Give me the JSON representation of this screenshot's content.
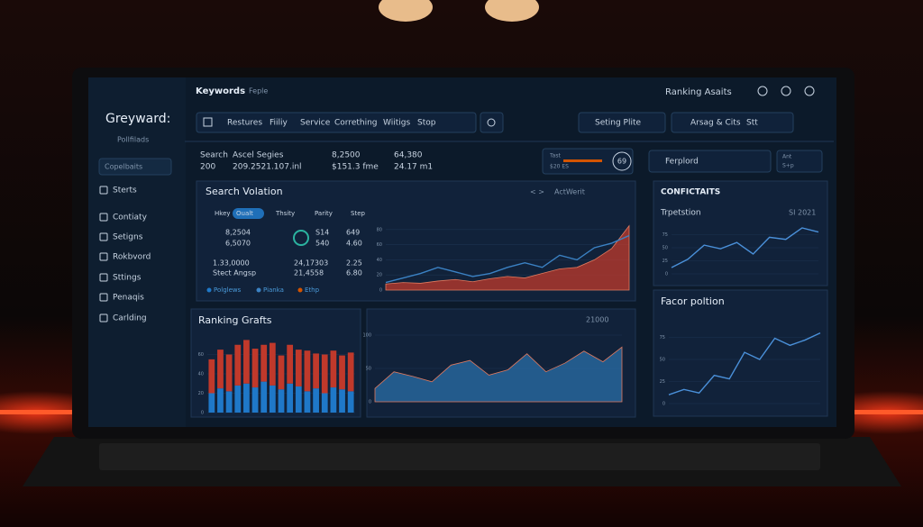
{
  "sidebar": {
    "brand": "Greyward:",
    "subtitle": "Pollfilads",
    "search": "Copelbaits",
    "nav": [
      "Sterts",
      "Contiaty",
      "Setigns",
      "Rokbvord",
      "Sttings",
      "Penaqis",
      "Carlding"
    ]
  },
  "header": {
    "title": "Keywords",
    "dropdown": "Feple",
    "right": "Ranking Asaits"
  },
  "toolbar": {
    "tabs": [
      "Restures",
      "Fiiliy",
      "Service",
      "Corrething",
      "Wiitigs",
      "Stop"
    ],
    "filter1": "Seting Plite",
    "filter2": "Arsag & Cits",
    "filter2_extra": "Stt"
  },
  "stats": [
    [
      "Search",
      "200"
    ],
    [
      "Ascel Segies",
      "209.2521.107.inl"
    ],
    [
      "8,2500",
      "$151.3 fme"
    ],
    [
      "64,380",
      "24.17 m1"
    ]
  ],
  "mini": {
    "label": "Tast",
    "value": "$20 ES",
    "gauge": "69"
  },
  "right_box": {
    "label": "Ferplord",
    "top": "Ant",
    "bottom": "S+p"
  },
  "volume_panel": {
    "nav": "< >",
    "link": "ActWerit",
    "tabs": [
      "Hkey",
      "Oualt",
      "Thsity",
      "Parity",
      "Step"
    ],
    "cells": [
      "8,2504",
      "6,5070",
      "S14",
      "540",
      "649",
      "4.60",
      "1.33,0000",
      "Stect Angsp",
      "24,17303",
      "21,4558",
      "2.25",
      "6.80"
    ],
    "legend": [
      "Polglews",
      "Pianka",
      "Ethp"
    ]
  },
  "chart_data": [
    {
      "type": "area",
      "title": "Search Volation",
      "ylim": [
        0,
        100
      ],
      "yticks": [
        0,
        20,
        40,
        60,
        80
      ],
      "categories": [
        null,
        null,
        null,
        null,
        null,
        null,
        null,
        null,
        null,
        null,
        null,
        null,
        null,
        null,
        null
      ],
      "series": [
        {
          "kind": "area",
          "color": "#c0392b",
          "values": [
            8,
            10,
            9,
            12,
            14,
            11,
            15,
            18,
            16,
            22,
            28,
            30,
            40,
            55,
            85
          ]
        },
        {
          "kind": "line",
          "color": "#3b82c4",
          "values": [
            10,
            16,
            22,
            30,
            24,
            18,
            22,
            30,
            36,
            30,
            46,
            40,
            56,
            62,
            72
          ]
        }
      ]
    },
    {
      "type": "line",
      "title": "CONFICTAITS",
      "subtitle": "Trpetstion",
      "annotation": "SI 2021",
      "ylim": [
        0,
        100
      ],
      "yticks": [
        0,
        25,
        50,
        75
      ],
      "categories": [
        null,
        null,
        null,
        null,
        null,
        null,
        null,
        null,
        null,
        null
      ],
      "series": [
        {
          "kind": "line",
          "color": "#4a90d9",
          "values": [
            12,
            28,
            55,
            48,
            60,
            38,
            70,
            66,
            88,
            80
          ]
        }
      ]
    },
    {
      "type": "bar",
      "title": "Ranking Grafts",
      "ylim": [
        0,
        80
      ],
      "yticks": [
        0,
        20,
        40,
        60
      ],
      "categories": [
        null,
        null,
        null,
        null,
        null,
        null,
        null,
        null,
        null,
        null,
        null,
        null,
        null,
        null,
        null,
        null,
        null
      ],
      "series": [
        {
          "kind": "bar",
          "color": "#1f78c8",
          "values": [
            20,
            25,
            22,
            28,
            30,
            26,
            32,
            28,
            24,
            30,
            27,
            22,
            25,
            20,
            26,
            24,
            22
          ]
        },
        {
          "kind": "bar",
          "color": "#c0392b",
          "values": [
            35,
            40,
            38,
            42,
            45,
            40,
            38,
            44,
            35,
            40,
            38,
            42,
            36,
            40,
            38,
            35,
            40
          ]
        }
      ]
    },
    {
      "type": "area",
      "annotation": "21000",
      "ylim": [
        0,
        100
      ],
      "yticks": [
        0,
        50,
        100
      ],
      "categories": [
        null,
        null,
        null,
        null,
        null,
        null,
        null,
        null,
        null,
        null,
        null,
        null,
        null,
        null
      ],
      "series": [
        {
          "kind": "area",
          "color": "#2a6fa8",
          "values": [
            20,
            45,
            38,
            30,
            55,
            62,
            40,
            48,
            72,
            45,
            58,
            76,
            60,
            82
          ]
        }
      ]
    },
    {
      "type": "line",
      "title": "Facor poltion",
      "ylim": [
        0,
        100
      ],
      "yticks": [
        0,
        25,
        50,
        75
      ],
      "categories": [
        null,
        null,
        null,
        null,
        null,
        null,
        null,
        null,
        null,
        null,
        null
      ],
      "series": [
        {
          "kind": "line",
          "color": "#4a90d9",
          "values": [
            10,
            16,
            12,
            32,
            28,
            58,
            50,
            74,
            66,
            72,
            80
          ]
        }
      ]
    }
  ]
}
